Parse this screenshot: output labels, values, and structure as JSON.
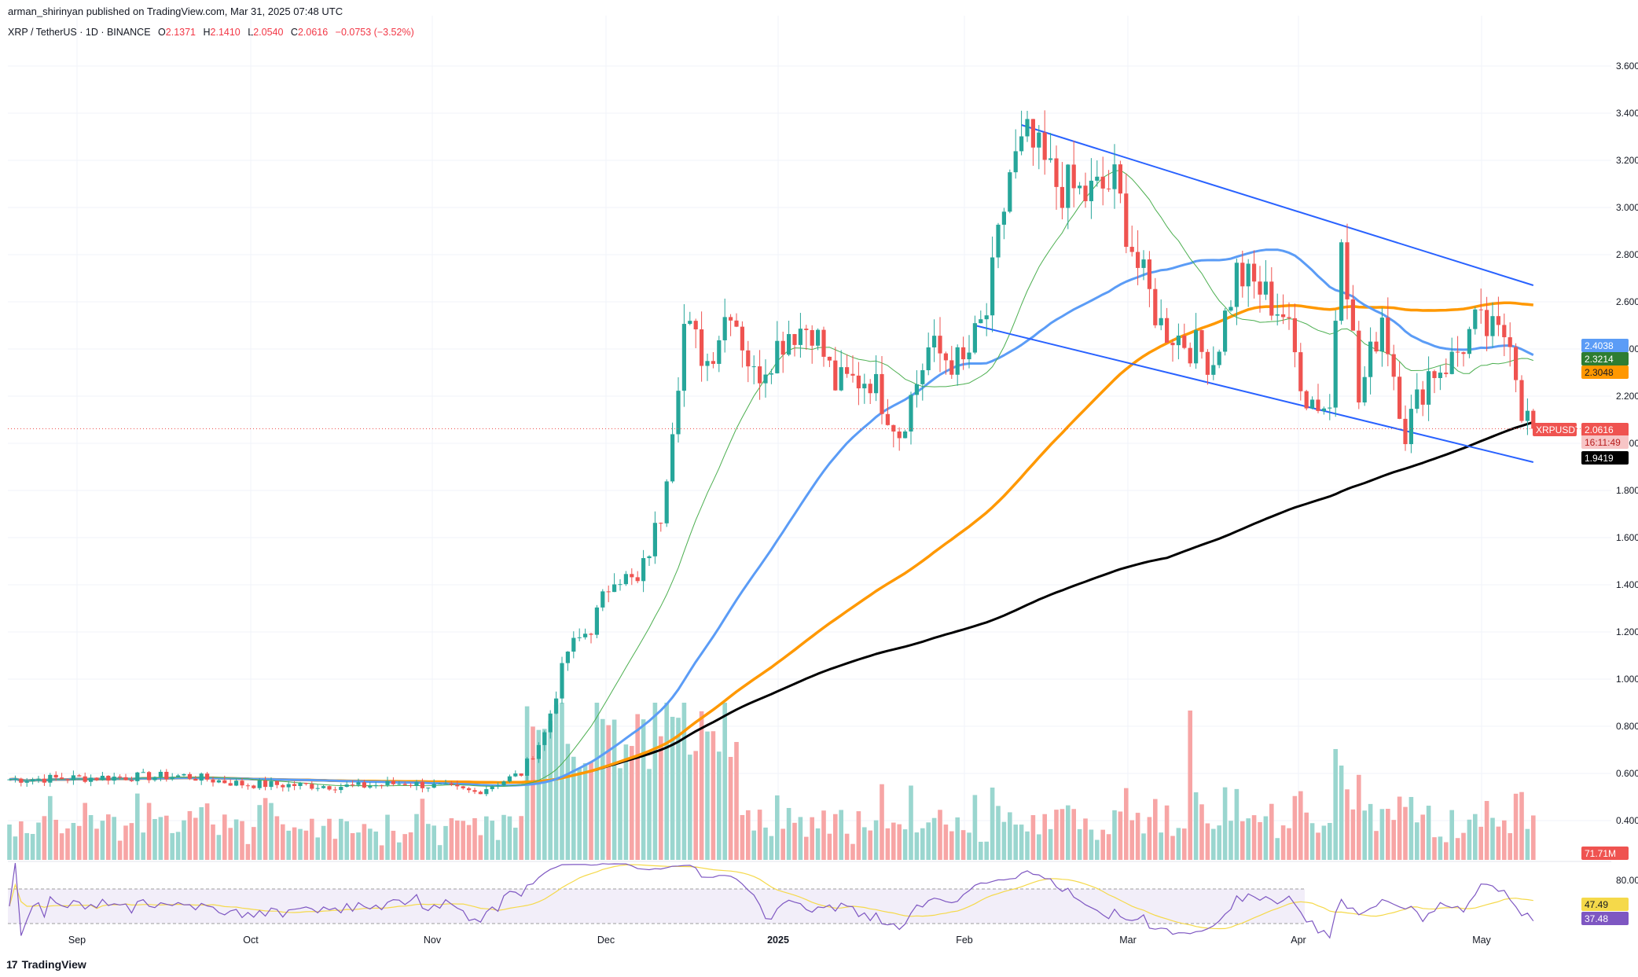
{
  "header": {
    "publisher": "arman_shirinyan published on TradingView.com, Mar 31, 2025 07:48 UTC",
    "symbol": "XRP / TetherUS · 1D · BINANCE",
    "open_label": "O",
    "open": "2.1371",
    "high_label": "H",
    "high": "2.1410",
    "low_label": "L",
    "low": "2.0540",
    "close_label": "C",
    "close": "2.0616",
    "change": "−0.0753 (−3.52%)"
  },
  "brand": "TradingView",
  "colors": {
    "up": "#26a69a",
    "down": "#ef5350",
    "up_vol": "#9ad6cf",
    "down_vol": "#f7a5a5",
    "ma_blue": "#5b9cf6",
    "ma_orange": "#ff9800",
    "ma_green": "#4caf50",
    "ma_black": "#000000",
    "trend": "#2962ff",
    "rsi": "#7e57c2",
    "rsi_ma": "#f5d94a"
  },
  "price_axis": {
    "ticks": [
      "3.6000",
      "3.4000",
      "3.2000",
      "3.0000",
      "2.8000",
      "2.6000",
      "2.4000",
      "2.2000",
      "2.0000",
      "1.8000",
      "1.6000",
      "1.4000",
      "1.2000",
      "1.0000",
      "0.8000",
      "0.6000",
      "0.4000"
    ],
    "symbol_tag": "XRPUSDT",
    "badges": {
      "blue": "2.4038",
      "green": "2.3214",
      "orange": "2.3048",
      "last": "2.0616",
      "countdown": "16:11:49",
      "black": "1.9419",
      "volume": "71.71M"
    }
  },
  "rsi_axis": {
    "ticks": [
      "80.00"
    ],
    "rsi_ma": "47.49",
    "rsi": "37.48"
  },
  "time_axis": {
    "labels": [
      "Sep",
      "Oct",
      "Nov",
      "Dec",
      "2025",
      "Feb",
      "Mar",
      "Apr",
      "May"
    ]
  },
  "chart_data": {
    "type": "candlestick",
    "symbol": "XRP / TetherUS",
    "interval": "1D",
    "exchange": "BINANCE",
    "ylim": [
      0.3,
      3.75
    ],
    "last_price": 2.0616,
    "indicators": {
      "ma_blue": 2.4038,
      "ma_green": 2.3214,
      "ma_orange": 2.3048,
      "ma_black": 1.9419,
      "volume": "71.71M",
      "rsi": 37.48,
      "rsi_ma": 47.49
    },
    "waypoints": [
      {
        "d": 0,
        "p": 0.575
      },
      {
        "d": 30,
        "p": 0.59
      },
      {
        "d": 40,
        "p": 0.555
      },
      {
        "d": 60,
        "p": 0.545
      },
      {
        "d": 68,
        "p": 0.56
      },
      {
        "d": 75,
        "p": 0.54
      },
      {
        "d": 80,
        "p": 0.52
      },
      {
        "d": 88,
        "p": 0.6
      },
      {
        "d": 92,
        "p": 0.77
      },
      {
        "d": 96,
        "p": 1.12
      },
      {
        "d": 100,
        "p": 1.22
      },
      {
        "d": 104,
        "p": 1.45
      },
      {
        "d": 108,
        "p": 1.4
      },
      {
        "d": 112,
        "p": 1.7
      },
      {
        "d": 116,
        "p": 2.5
      },
      {
        "d": 120,
        "p": 2.35
      },
      {
        "d": 124,
        "p": 2.6
      },
      {
        "d": 128,
        "p": 2.28
      },
      {
        "d": 134,
        "p": 2.48
      },
      {
        "d": 138,
        "p": 2.5
      },
      {
        "d": 142,
        "p": 2.25
      },
      {
        "d": 148,
        "p": 2.28
      },
      {
        "d": 153,
        "p": 2.05
      },
      {
        "d": 158,
        "p": 2.4
      },
      {
        "d": 164,
        "p": 2.33
      },
      {
        "d": 168,
        "p": 2.55
      },
      {
        "d": 172,
        "p": 3.15
      },
      {
        "d": 175,
        "p": 3.28
      },
      {
        "d": 180,
        "p": 3.1
      },
      {
        "d": 185,
        "p": 3.05
      },
      {
        "d": 190,
        "p": 3.1
      },
      {
        "d": 194,
        "p": 2.75
      },
      {
        "d": 198,
        "p": 2.5
      },
      {
        "d": 203,
        "p": 2.42
      },
      {
        "d": 207,
        "p": 2.35
      },
      {
        "d": 211,
        "p": 2.72
      },
      {
        "d": 215,
        "p": 2.65
      },
      {
        "d": 219,
        "p": 2.55
      },
      {
        "d": 223,
        "p": 2.2
      },
      {
        "d": 227,
        "p": 2.15
      },
      {
        "d": 229,
        "p": 2.95
      },
      {
        "d": 232,
        "p": 2.18
      },
      {
        "d": 236,
        "p": 2.55
      },
      {
        "d": 240,
        "p": 2.05
      },
      {
        "d": 244,
        "p": 2.3
      },
      {
        "d": 248,
        "p": 2.35
      },
      {
        "d": 252,
        "p": 2.5
      },
      {
        "d": 256,
        "p": 2.45
      },
      {
        "d": 258,
        "p": 2.48
      },
      {
        "d": 260,
        "p": 2.15
      },
      {
        "d": 262,
        "p": 2.06
      }
    ]
  }
}
